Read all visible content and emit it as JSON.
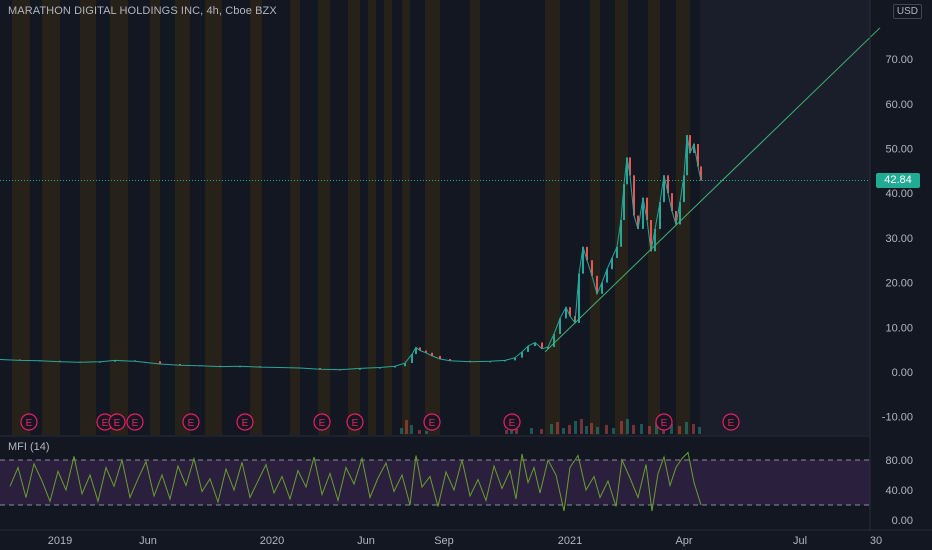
{
  "header": {
    "symbol_title": "MARATHON DIGITAL HOLDINGS INC, 4h, Cboe BZX",
    "currency": "USD"
  },
  "price_label": "42.84",
  "indicator_label": "MFI (14)",
  "colors": {
    "background": "#131722",
    "price_line": "#26a69a",
    "up_candle": "#26a69a",
    "down_candle": "#ef5350",
    "trendline": "#3cb371",
    "mfi_line": "#6a9e2e",
    "mfi_band": "#2a1f3d",
    "earnings_marker": "#e91e63"
  },
  "chart_data": [
    {
      "type": "line",
      "title": "MARATHON DIGITAL HOLDINGS INC, 4h, Cboe BZX",
      "x_ticks": [
        "2019",
        "Jun",
        "2020",
        "Jun",
        "Sep",
        "2021",
        "Apr",
        "Jul",
        "30"
      ],
      "y_ticks": [
        70.0,
        60.0,
        50.0,
        40.0,
        30.0,
        20.0,
        10.0,
        0.0,
        -10.0
      ],
      "ylim": [
        -13.5,
        77
      ],
      "grid": false,
      "series": [
        {
          "values": [
            [
              0,
              2.8
            ],
            [
              20,
              2.6
            ],
            [
              40,
              2.5
            ],
            [
              60,
              2.3
            ],
            [
              80,
              2.2
            ],
            [
              100,
              2.3
            ],
            [
              115,
              2.6
            ],
            [
              135,
              2.4
            ],
            [
              160,
              1.8
            ],
            [
              180,
              1.5
            ],
            [
              200,
              1.4
            ],
            [
              220,
              1.2
            ],
            [
              240,
              1.3
            ],
            [
              260,
              1.1
            ],
            [
              280,
              1.0
            ],
            [
              300,
              0.9
            ],
            [
              320,
              0.6
            ],
            [
              340,
              0.5
            ],
            [
              360,
              0.8
            ],
            [
              380,
              1.0
            ],
            [
              395,
              1.3
            ],
            [
              405,
              2.0
            ],
            [
              412,
              4.0
            ],
            [
              416,
              5.5
            ],
            [
              420,
              4.8
            ],
            [
              426,
              4.3
            ],
            [
              432,
              3.6
            ],
            [
              440,
              2.9
            ],
            [
              450,
              2.5
            ],
            [
              470,
              2.3
            ],
            [
              490,
              2.4
            ],
            [
              505,
              2.6
            ],
            [
              515,
              3.2
            ],
            [
              522,
              4.5
            ],
            [
              528,
              5.8
            ],
            [
              535,
              6.6
            ],
            [
              542,
              5.2
            ],
            [
              548,
              5.6
            ],
            [
              554,
              8.5
            ],
            [
              560,
              12.0
            ],
            [
              566,
              14.5
            ],
            [
              570,
              12.5
            ],
            [
              575,
              11.0
            ],
            [
              579,
              22.0
            ],
            [
              583,
              28.0
            ],
            [
              587,
              25.0
            ],
            [
              592,
              21.5
            ],
            [
              597,
              17.5
            ],
            [
              602,
              20.0
            ],
            [
              607,
              23.0
            ],
            [
              612,
              25.5
            ],
            [
              617,
              28.0
            ],
            [
              621,
              34.0
            ],
            [
              624,
              42.0
            ],
            [
              627,
              48.0
            ],
            [
              630,
              44.0
            ],
            [
              634,
              35.0
            ],
            [
              638,
              32.0
            ],
            [
              643,
              39.0
            ],
            [
              647,
              34.0
            ],
            [
              651,
              27.0
            ],
            [
              655,
              32.0
            ],
            [
              660,
              38.0
            ],
            [
              664,
              44.0
            ],
            [
              668,
              40.0
            ],
            [
              672,
              36.0
            ],
            [
              676,
              33.0
            ],
            [
              680,
              38.0
            ],
            [
              684,
              44.0
            ],
            [
              687,
              53.0
            ],
            [
              690,
              49.0
            ],
            [
              694,
              51.0
            ],
            [
              698,
              46.0
            ],
            [
              701,
              42.84
            ]
          ]
        }
      ],
      "volume": [
        [
          400,
          6
        ],
        [
          405,
          14
        ],
        [
          410,
          9
        ],
        [
          418,
          4
        ],
        [
          425,
          3
        ],
        [
          505,
          4
        ],
        [
          510,
          9
        ],
        [
          515,
          5
        ],
        [
          530,
          6
        ],
        [
          540,
          5
        ],
        [
          550,
          10
        ],
        [
          556,
          12
        ],
        [
          562,
          6
        ],
        [
          568,
          9
        ],
        [
          574,
          13
        ],
        [
          580,
          15
        ],
        [
          585,
          8
        ],
        [
          590,
          11
        ],
        [
          596,
          7
        ],
        [
          605,
          9
        ],
        [
          612,
          6
        ],
        [
          620,
          13
        ],
        [
          626,
          15
        ],
        [
          632,
          9
        ],
        [
          640,
          10
        ],
        [
          648,
          8
        ],
        [
          655,
          11
        ],
        [
          662,
          9
        ],
        [
          670,
          10
        ],
        [
          678,
          8
        ],
        [
          685,
          12
        ],
        [
          692,
          10
        ],
        [
          698,
          7
        ]
      ],
      "earnings_markers": [
        29,
        105,
        117,
        135,
        191,
        245,
        322,
        355,
        432,
        512,
        664,
        731
      ],
      "trendline": {
        "from": [
          545,
          4.5
        ],
        "to": [
          880,
          77
        ]
      }
    },
    {
      "type": "line",
      "title": "MFI (14)",
      "y_ticks": [
        80.0,
        40.0,
        0.0
      ],
      "ylim": [
        -8,
        100
      ],
      "reference_lines": [
        80,
        20
      ],
      "series": [
        {
          "values": [
            [
              10,
              45
            ],
            [
              18,
              70
            ],
            [
              26,
              30
            ],
            [
              34,
              75
            ],
            [
              42,
              52
            ],
            [
              50,
              25
            ],
            [
              58,
              65
            ],
            [
              66,
              40
            ],
            [
              74,
              85
            ],
            [
              82,
              35
            ],
            [
              90,
              60
            ],
            [
              98,
              25
            ],
            [
              106,
              70
            ],
            [
              114,
              45
            ],
            [
              122,
              80
            ],
            [
              130,
              30
            ],
            [
              138,
              55
            ],
            [
              146,
              78
            ],
            [
              154,
              32
            ],
            [
              162,
              60
            ],
            [
              170,
              28
            ],
            [
              178,
              72
            ],
            [
              186,
              46
            ],
            [
              194,
              82
            ],
            [
              202,
              38
            ],
            [
              210,
              55
            ],
            [
              218,
              24
            ],
            [
              226,
              68
            ],
            [
              234,
              40
            ],
            [
              242,
              77
            ],
            [
              250,
              30
            ],
            [
              258,
              52
            ],
            [
              266,
              74
            ],
            [
              274,
              36
            ],
            [
              282,
              58
            ],
            [
              290,
              28
            ],
            [
              298,
              66
            ],
            [
              306,
              44
            ],
            [
              314,
              84
            ],
            [
              322,
              34
            ],
            [
              330,
              62
            ],
            [
              338,
              26
            ],
            [
              346,
              70
            ],
            [
              354,
              48
            ],
            [
              362,
              82
            ],
            [
              370,
              30
            ],
            [
              378,
              56
            ],
            [
              386,
              76
            ],
            [
              394,
              38
            ],
            [
              402,
              60
            ],
            [
              410,
              20
            ],
            [
              416,
              86
            ],
            [
              422,
              44
            ],
            [
              430,
              58
            ],
            [
              438,
              18
            ],
            [
              446,
              64
            ],
            [
              454,
              40
            ],
            [
              462,
              80
            ],
            [
              470,
              32
            ],
            [
              478,
              54
            ],
            [
              486,
              26
            ],
            [
              494,
              72
            ],
            [
              502,
              42
            ],
            [
              510,
              66
            ],
            [
              516,
              28
            ],
            [
              522,
              88
            ],
            [
              528,
              50
            ],
            [
              534,
              70
            ],
            [
              540,
              36
            ],
            [
              548,
              80
            ],
            [
              556,
              60
            ],
            [
              564,
              12
            ],
            [
              570,
              70
            ],
            [
              578,
              86
            ],
            [
              586,
              40
            ],
            [
              594,
              58
            ],
            [
              600,
              30
            ],
            [
              608,
              52
            ],
            [
              616,
              18
            ],
            [
              622,
              80
            ],
            [
              630,
              56
            ],
            [
              638,
              30
            ],
            [
              646,
              74
            ],
            [
              652,
              12
            ],
            [
              658,
              62
            ],
            [
              664,
              84
            ],
            [
              670,
              46
            ],
            [
              676,
              70
            ],
            [
              682,
              82
            ],
            [
              688,
              90
            ],
            [
              694,
              50
            ],
            [
              701,
              20
            ]
          ]
        }
      ]
    }
  ]
}
